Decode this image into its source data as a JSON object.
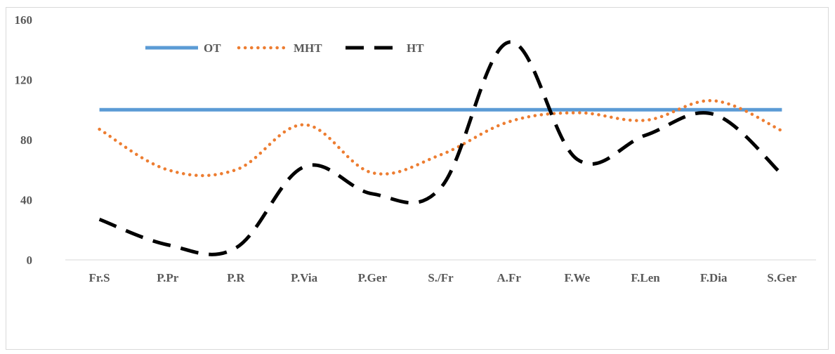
{
  "chart_data": {
    "type": "line",
    "title": "",
    "xlabel": "",
    "ylabel": "",
    "categories": [
      "Fr.S",
      "P.Pr",
      "P.R",
      "P.Via",
      "P.Ger",
      "S./Fr",
      "A.Fr",
      "F.We",
      "F.Len",
      "F.Dia",
      "S.Ger"
    ],
    "ylim": [
      0,
      160
    ],
    "yticks": [
      "0",
      "40",
      "80",
      "120",
      "160"
    ],
    "grid": false,
    "legend_position": "top-left",
    "series": [
      {
        "name": "OT",
        "color": "#5b9bd5",
        "style": "solid",
        "values": [
          100,
          100,
          100,
          100,
          100,
          100,
          100,
          100,
          100,
          100,
          100
        ]
      },
      {
        "name": "MHT",
        "color": "#ed7d31",
        "style": "dotted",
        "values": [
          87,
          60,
          60,
          90,
          58,
          70,
          92,
          98,
          93,
          106,
          86
        ]
      },
      {
        "name": "HT",
        "color": "#000000",
        "style": "dashed",
        "values": [
          27,
          10,
          8,
          62,
          44,
          48,
          145,
          67,
          83,
          97,
          57
        ]
      }
    ]
  }
}
